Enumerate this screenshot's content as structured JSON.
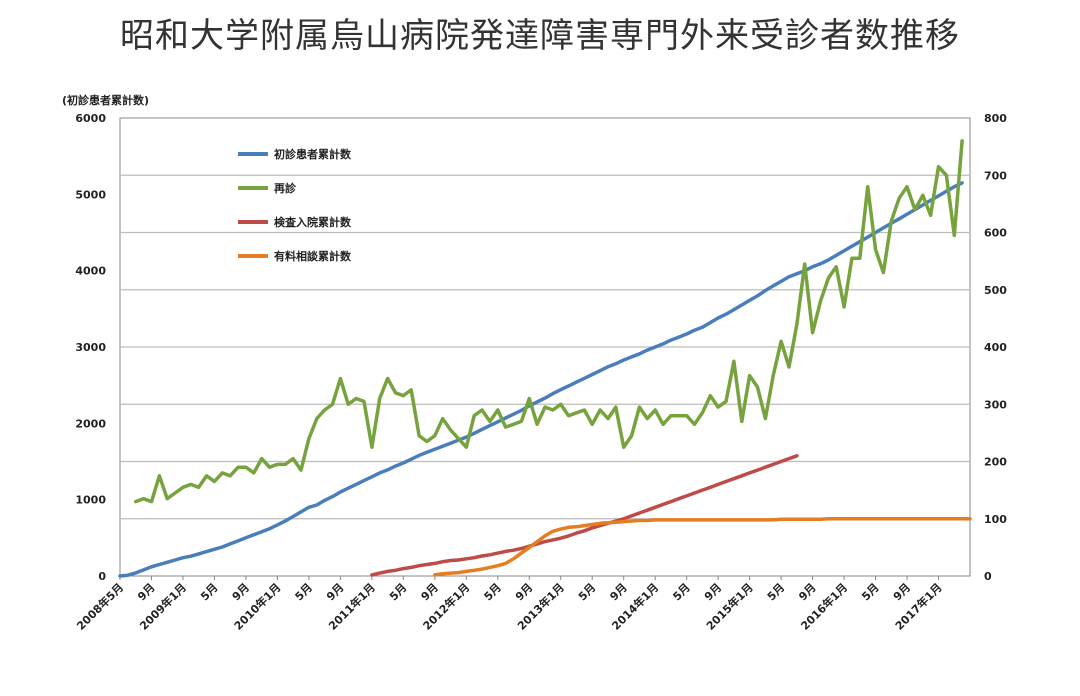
{
  "title": "昭和大学附属烏山病院発達障害専門外来受診者数推移",
  "chart_data": {
    "type": "line",
    "left_axis_title": "(初診患者累計数)",
    "y_left": {
      "min": 0,
      "max": 6000,
      "ticks": [
        0,
        1000,
        2000,
        3000,
        4000,
        5000,
        6000
      ]
    },
    "y_right": {
      "min": 0,
      "max": 800,
      "ticks": [
        0,
        100,
        200,
        300,
        400,
        500,
        600,
        700,
        800
      ]
    },
    "x_range": [
      0,
      108
    ],
    "x_ticks": [
      {
        "i": 0,
        "label": "2008年5月"
      },
      {
        "i": 4,
        "label": "9月"
      },
      {
        "i": 8,
        "label": "2009年1月"
      },
      {
        "i": 12,
        "label": "5月"
      },
      {
        "i": 16,
        "label": "9月"
      },
      {
        "i": 20,
        "label": "2010年1月"
      },
      {
        "i": 24,
        "label": "5月"
      },
      {
        "i": 28,
        "label": "9月"
      },
      {
        "i": 32,
        "label": "2011年1月"
      },
      {
        "i": 36,
        "label": "5月"
      },
      {
        "i": 40,
        "label": "9月"
      },
      {
        "i": 44,
        "label": "2012年1月"
      },
      {
        "i": 48,
        "label": "5月"
      },
      {
        "i": 52,
        "label": "9月"
      },
      {
        "i": 56,
        "label": "2013年1月"
      },
      {
        "i": 60,
        "label": "5月"
      },
      {
        "i": 64,
        "label": "9月"
      },
      {
        "i": 68,
        "label": "2014年1月"
      },
      {
        "i": 72,
        "label": "5月"
      },
      {
        "i": 76,
        "label": "9月"
      },
      {
        "i": 80,
        "label": "2015年1月"
      },
      {
        "i": 84,
        "label": "5月"
      },
      {
        "i": 88,
        "label": "9月"
      },
      {
        "i": 92,
        "label": "2016年1月"
      },
      {
        "i": 96,
        "label": "5月"
      },
      {
        "i": 100,
        "label": "9月"
      },
      {
        "i": 104,
        "label": "2017年1月"
      }
    ],
    "series": [
      {
        "name": "初診患者累計数",
        "axis": "left",
        "color": "#4a7ebb",
        "start": 0,
        "values": [
          0,
          10,
          40,
          80,
          120,
          150,
          180,
          210,
          240,
          260,
          290,
          320,
          350,
          380,
          420,
          460,
          500,
          540,
          580,
          620,
          670,
          720,
          780,
          840,
          900,
          930,
          990,
          1040,
          1100,
          1150,
          1200,
          1250,
          1300,
          1350,
          1390,
          1440,
          1480,
          1530,
          1580,
          1620,
          1660,
          1700,
          1740,
          1780,
          1820,
          1870,
          1920,
          1970,
          2020,
          2070,
          2120,
          2170,
          2230,
          2280,
          2330,
          2390,
          2440,
          2490,
          2540,
          2590,
          2640,
          2690,
          2740,
          2780,
          2830,
          2870,
          2910,
          2960,
          3000,
          3040,
          3090,
          3130,
          3170,
          3220,
          3260,
          3320,
          3380,
          3430,
          3490,
          3550,
          3610,
          3670,
          3740,
          3800,
          3860,
          3920,
          3960,
          4000,
          4050,
          4090,
          4140,
          4200,
          4260,
          4320,
          4380,
          4440,
          4500,
          4560,
          4620,
          4680,
          4740,
          4800,
          4860,
          4920,
          4980,
          5040,
          5100,
          5150
        ]
      },
      {
        "name": "再診",
        "axis": "right",
        "color": "#77a33e",
        "start": 2,
        "values": [
          130,
          135,
          130,
          175,
          135,
          145,
          155,
          160,
          155,
          175,
          165,
          180,
          175,
          190,
          190,
          180,
          205,
          190,
          195,
          195,
          205,
          185,
          240,
          275,
          290,
          300,
          345,
          300,
          310,
          305,
          225,
          310,
          345,
          320,
          315,
          325,
          245,
          235,
          245,
          275,
          255,
          240,
          225,
          280,
          290,
          270,
          290,
          260,
          265,
          270,
          310,
          265,
          295,
          290,
          300,
          280,
          285,
          290,
          265,
          290,
          275,
          295,
          225,
          245,
          295,
          275,
          290,
          265,
          280,
          280,
          280,
          265,
          285,
          315,
          295,
          305,
          375,
          270,
          350,
          330,
          275,
          350,
          410,
          365,
          440,
          545,
          425,
          480,
          520,
          540,
          470,
          555,
          555,
          680,
          570,
          530,
          620,
          660,
          680,
          640,
          665,
          630,
          715,
          700,
          595,
          760
        ]
      },
      {
        "name": "検査入院累計数",
        "axis": "right",
        "color": "#be4b48",
        "start": 32,
        "values": [
          2,
          5,
          8,
          10,
          13,
          15,
          18,
          20,
          22,
          25,
          27,
          28,
          30,
          32,
          35,
          37,
          40,
          43,
          45,
          48,
          52,
          56,
          60,
          63,
          66,
          70,
          75,
          79,
          84,
          88,
          92,
          96,
          100,
          105,
          110,
          115,
          120,
          125,
          130,
          135,
          140,
          145,
          150,
          155,
          160,
          165,
          170,
          175,
          180,
          185,
          190,
          195,
          200,
          205,
          210
        ]
      },
      {
        "name": "有料相談累計数",
        "axis": "right",
        "color": "#e57e22",
        "start": 40,
        "values": [
          2,
          4,
          5,
          6,
          8,
          10,
          12,
          15,
          18,
          22,
          30,
          40,
          50,
          60,
          70,
          78,
          82,
          85,
          86,
          88,
          90,
          92,
          93,
          94,
          95,
          96,
          97,
          97,
          98,
          98,
          98,
          98,
          98,
          98,
          98,
          98,
          98,
          98,
          98,
          98,
          98,
          98,
          98,
          98,
          99,
          99,
          99,
          99,
          99,
          99,
          100,
          100,
          100,
          100,
          100,
          100,
          100,
          100,
          100,
          100,
          100,
          100,
          100,
          100,
          100,
          100,
          100,
          100,
          100
        ]
      }
    ],
    "legend_position": "top-left",
    "grid": true
  }
}
